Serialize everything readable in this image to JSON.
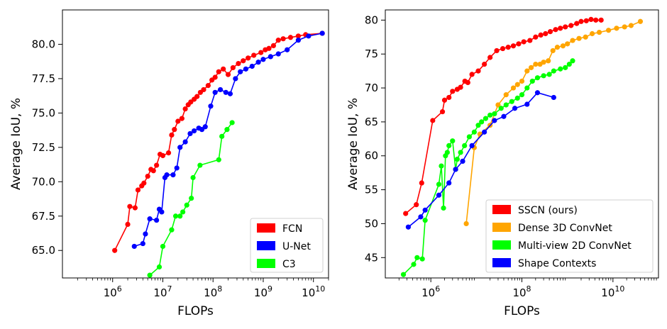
{
  "chart_data": [
    {
      "type": "line",
      "xlabel": "FLOPs",
      "ylabel": "Average IoU, %",
      "xscale": "log",
      "xlim": [
        100000,
        20000000000
      ],
      "ylim": [
        63.0,
        82.5
      ],
      "xticks": [
        {
          "value": 1000000,
          "base": "10",
          "exp": "6"
        },
        {
          "value": 10000000,
          "base": "10",
          "exp": "7"
        },
        {
          "value": 100000000,
          "base": "10",
          "exp": "8"
        },
        {
          "value": 1000000000,
          "base": "10",
          "exp": "9"
        },
        {
          "value": 10000000000,
          "base": "10",
          "exp": "10"
        }
      ],
      "yticks": [
        65.0,
        67.5,
        70.0,
        72.5,
        75.0,
        77.5,
        80.0
      ],
      "ytick_labels": [
        "65.0",
        "67.5",
        "70.0",
        "72.5",
        "75.0",
        "77.5",
        "80.0"
      ],
      "grid": false,
      "legend_position": "bottom-right",
      "series": [
        {
          "name": "FCN",
          "color": "#ff0000",
          "x": [
            1100000,
            2000000,
            2200000,
            2800000,
            3200000,
            3800000,
            4200000,
            5000000,
            5800000,
            6500000,
            7500000,
            8800000,
            10000000,
            13000000,
            15000000,
            17000000,
            20000000,
            24000000,
            28000000,
            32000000,
            36000000,
            42000000,
            48000000,
            56000000,
            65000000,
            80000000,
            95000000,
            110000000,
            130000000,
            160000000,
            200000000,
            250000000,
            320000000,
            400000000,
            500000000,
            650000000,
            900000000,
            1100000000,
            1300000000,
            1600000000,
            2000000000,
            2500000000,
            3500000000,
            5000000000,
            7000000000,
            15000000000
          ],
          "y": [
            65.0,
            66.9,
            68.2,
            68.1,
            69.4,
            69.7,
            69.9,
            70.4,
            70.9,
            70.8,
            71.2,
            72.0,
            71.9,
            72.1,
            73.4,
            73.8,
            74.4,
            74.6,
            75.3,
            75.6,
            75.8,
            76.0,
            76.2,
            76.5,
            76.7,
            77.0,
            77.4,
            77.6,
            78.0,
            78.2,
            77.8,
            78.3,
            78.6,
            78.8,
            79.0,
            79.2,
            79.4,
            79.6,
            79.7,
            79.9,
            80.3,
            80.4,
            80.5,
            80.6,
            80.7,
            80.8
          ]
        },
        {
          "name": "U-Net",
          "color": "#0000ff",
          "x": [
            2700000,
            4000000,
            4500000,
            5500000,
            7500000,
            8500000,
            9500000,
            11000000,
            12000000,
            16000000,
            19000000,
            22000000,
            28000000,
            35000000,
            42000000,
            52000000,
            60000000,
            70000000,
            90000000,
            110000000,
            140000000,
            180000000,
            220000000,
            280000000,
            350000000,
            450000000,
            600000000,
            800000000,
            1000000000,
            1400000000,
            2000000000,
            3000000000,
            5000000000,
            8000000000,
            15000000000
          ],
          "y": [
            65.3,
            65.5,
            66.2,
            67.3,
            67.2,
            68.0,
            67.8,
            70.3,
            70.5,
            70.5,
            71.0,
            72.5,
            72.9,
            73.5,
            73.7,
            73.9,
            73.8,
            74.0,
            75.5,
            76.5,
            76.7,
            76.5,
            76.4,
            77.5,
            78.0,
            78.2,
            78.4,
            78.7,
            78.9,
            79.1,
            79.3,
            79.6,
            80.3,
            80.6,
            80.8
          ]
        },
        {
          "name": "C3",
          "color": "#00ff00",
          "x": [
            5500000,
            8500000,
            10000000,
            15000000,
            18000000,
            22000000,
            25000000,
            30000000,
            37000000,
            40000000,
            55000000,
            130000000,
            150000000,
            190000000,
            240000000
          ],
          "y": [
            63.2,
            63.8,
            65.3,
            66.5,
            67.5,
            67.5,
            67.8,
            68.3,
            68.8,
            70.3,
            71.2,
            71.6,
            73.3,
            73.8,
            74.3
          ]
        }
      ]
    },
    {
      "type": "line",
      "xlabel": "FLOPs",
      "ylabel": "Average IoU, %",
      "xscale": "log",
      "xlim": [
        100000,
        100000000000
      ],
      "ylim": [
        42.0,
        81.5
      ],
      "xticks": [
        {
          "value": 1000000,
          "base": "10",
          "exp": "6"
        },
        {
          "value": 100000000,
          "base": "10",
          "exp": "8"
        },
        {
          "value": 10000000000,
          "base": "10",
          "exp": "10"
        }
      ],
      "yticks": [
        45,
        50,
        55,
        60,
        65,
        70,
        75,
        80
      ],
      "ytick_labels": [
        "45",
        "50",
        "55",
        "60",
        "65",
        "70",
        "75",
        "80"
      ],
      "grid": false,
      "legend_position": "bottom-right",
      "series": [
        {
          "name": "SSCN (ours)",
          "color": "#ff0000",
          "x": [
            280000,
            480000,
            630000,
            1100000,
            1800000,
            2000000,
            2500000,
            3000000,
            3800000,
            4500000,
            5600000,
            6500000,
            8000000,
            11000000,
            15000000,
            20000000,
            28000000,
            38000000,
            50000000,
            65000000,
            85000000,
            110000000,
            150000000,
            200000000,
            260000000,
            330000000,
            420000000,
            550000000,
            700000000,
            900000000,
            1200000000,
            1600000000,
            2000000000,
            2600000000,
            3300000000,
            4200000000,
            5500000000
          ],
          "y": [
            51.5,
            52.8,
            56.0,
            65.2,
            66.5,
            68.2,
            68.6,
            69.5,
            69.8,
            70.1,
            71.0,
            70.8,
            72.0,
            72.5,
            73.5,
            74.5,
            75.5,
            75.8,
            76.0,
            76.2,
            76.5,
            76.8,
            77.0,
            77.5,
            77.8,
            78.0,
            78.3,
            78.6,
            78.8,
            79.0,
            79.2,
            79.5,
            79.8,
            79.9,
            80.1,
            80.0,
            80.0
          ]
        },
        {
          "name": "Dense 3D ConvNet",
          "color": "#ffa500",
          "x": [
            6000000,
            9000000,
            12000000,
            20000000,
            30000000,
            45000000,
            65000000,
            80000000,
            100000000,
            130000000,
            160000000,
            200000000,
            250000000,
            300000000,
            380000000,
            480000000,
            600000000,
            800000000,
            1000000000,
            1300000000,
            1800000000,
            2500000000,
            3500000000,
            5000000000,
            8000000000,
            12000000000,
            18000000000,
            25000000000,
            40000000000
          ],
          "y": [
            50.0,
            61.2,
            63.2,
            64.5,
            67.5,
            69.0,
            70.0,
            70.5,
            71.0,
            72.5,
            73.0,
            73.5,
            73.5,
            73.8,
            74.0,
            75.5,
            76.0,
            76.2,
            76.5,
            77.0,
            77.3,
            77.5,
            78.0,
            78.2,
            78.5,
            78.8,
            79.0,
            79.2,
            79.8
          ]
        },
        {
          "name": "Multi-view 2D ConvNet",
          "color": "#00ff00",
          "x": [
            250000,
            420000,
            500000,
            650000,
            750000,
            1500000,
            1700000,
            1900000,
            2100000,
            2300000,
            2500000,
            3000000,
            3500000,
            3800000,
            4500000,
            5500000,
            7000000,
            9000000,
            11000000,
            13000000,
            16000000,
            20000000,
            25000000,
            35000000,
            45000000,
            60000000,
            80000000,
            100000000,
            130000000,
            170000000,
            220000000,
            300000000,
            400000000,
            500000000,
            700000000,
            900000000,
            1100000000,
            1300000000
          ],
          "y": [
            42.5,
            44.0,
            45.0,
            44.8,
            50.5,
            55.8,
            58.5,
            52.3,
            60.0,
            60.5,
            61.5,
            62.2,
            58.0,
            59.5,
            60.5,
            61.5,
            62.8,
            63.5,
            64.5,
            65.0,
            65.5,
            66.0,
            66.2,
            67.0,
            67.5,
            68.0,
            68.5,
            69.0,
            70.0,
            71.0,
            71.5,
            71.8,
            72.0,
            72.5,
            72.8,
            73.0,
            73.5,
            74.0
          ]
        },
        {
          "name": "Shape Contexts",
          "color": "#0000ff",
          "x": [
            320000,
            600000,
            750000,
            1500000,
            2500000,
            3500000,
            5000000,
            8000000,
            15000000,
            25000000,
            40000000,
            70000000,
            130000000,
            220000000,
            500000000
          ],
          "y": [
            49.5,
            51.0,
            52.0,
            54.2,
            56.0,
            58.0,
            59.2,
            61.5,
            63.5,
            65.2,
            65.8,
            67.0,
            67.6,
            69.3,
            68.6
          ]
        }
      ]
    }
  ]
}
